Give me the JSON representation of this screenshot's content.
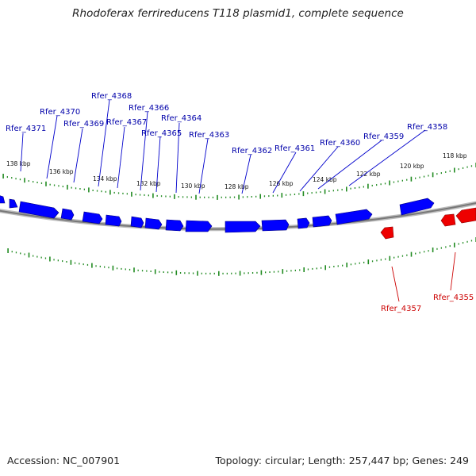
{
  "title": "Rhodoferax ferrireducens T118 plasmid1, complete sequence",
  "accession": "Accession: NC_007901",
  "summary": "Topology: circular; Length: 257,447 bp; Genes: 249",
  "colors": {
    "forward_gene": "#0000ff",
    "reverse_gene": "#ee0000",
    "tick": "#228b22",
    "backbone": "#888888",
    "label_forward": "#0000aa",
    "label_reverse": "#cc0000"
  },
  "kbp_labels": [
    "138 kbp",
    "136 kbp",
    "134 kbp",
    "132 kbp",
    "130 kbp",
    "128 kbp",
    "126 kbp",
    "124 kbp",
    "122 kbp",
    "120 kbp",
    "118 kbp"
  ],
  "gene_labels_forward": [
    "Rfer_4371",
    "Rfer_4370",
    "Rfer_4369",
    "Rfer_4368",
    "Rfer_4367",
    "Rfer_4366",
    "Rfer_4365",
    "Rfer_4364",
    "Rfer_4363",
    "Rfer_4362",
    "Rfer_4361",
    "Rfer_4360",
    "Rfer_4359",
    "Rfer_4358"
  ],
  "gene_labels_reverse": [
    "Rfer_4357",
    "Rfer_4355"
  ]
}
